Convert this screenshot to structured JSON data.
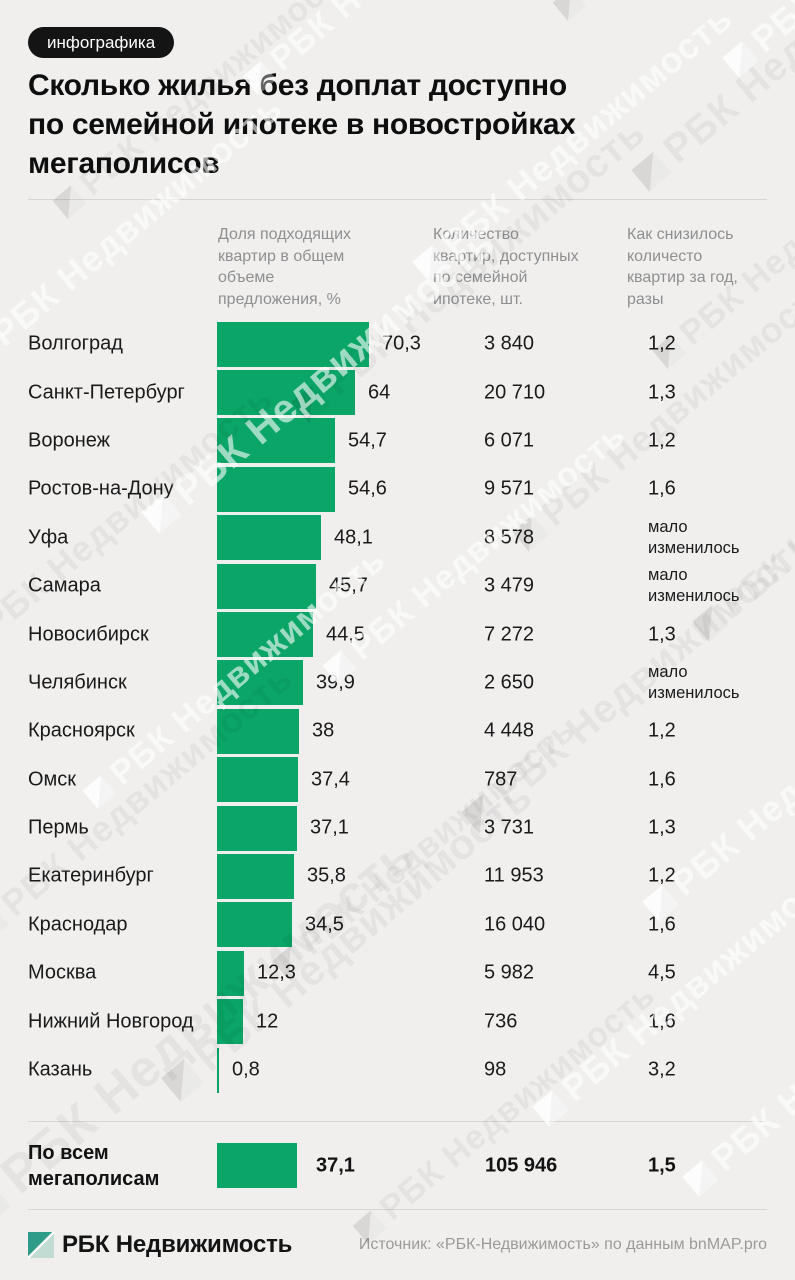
{
  "badge": "инфографика",
  "title_lines": [
    "Сколько жилья без доплат доступно",
    "по семейной ипотеке в новостройках",
    "мегаполисов"
  ],
  "columns": [
    {
      "lines": [
        "Доля подходящих",
        "квартир в общем",
        "объеме",
        "предложения, %"
      ]
    },
    {
      "lines": [
        "Количество",
        "квартир, доступных",
        "по семейной",
        "ипотеке, шт."
      ]
    },
    {
      "lines": [
        "Как снизилось",
        "количесто",
        "квартир за год,",
        "разы"
      ]
    }
  ],
  "chart_data": {
    "type": "bar",
    "orientation": "horizontal",
    "bar_color": "#0aa567",
    "value_unit": "%",
    "x_range": [
      0,
      70.3
    ],
    "rows": [
      {
        "city": "Волгоград",
        "share_pct": 70.3,
        "share_label": "70,3",
        "count": 3840,
        "count_label": "3 840",
        "drop": 1.2,
        "drop_label": "1,2"
      },
      {
        "city": "Санкт-Петербург",
        "share_pct": 64,
        "share_label": "64",
        "count": 20710,
        "count_label": "20 710",
        "drop": 1.3,
        "drop_label": "1,3"
      },
      {
        "city": "Воронеж",
        "share_pct": 54.7,
        "share_label": "54,7",
        "count": 6071,
        "count_label": "6 071",
        "drop": 1.2,
        "drop_label": "1,2"
      },
      {
        "city": "Ростов-на-Дону",
        "share_pct": 54.6,
        "share_label": "54,6",
        "count": 9571,
        "count_label": "9 571",
        "drop": 1.6,
        "drop_label": "1,6"
      },
      {
        "city": "Уфа",
        "share_pct": 48.1,
        "share_label": "48,1",
        "count": 8578,
        "count_label": "8 578",
        "drop": null,
        "drop_label": "мало изменилось"
      },
      {
        "city": "Самара",
        "share_pct": 45.7,
        "share_label": "45,7",
        "count": 3479,
        "count_label": "3 479",
        "drop": null,
        "drop_label": "мало изменилось"
      },
      {
        "city": "Новосибирск",
        "share_pct": 44.5,
        "share_label": "44,5",
        "count": 7272,
        "count_label": "7 272",
        "drop": 1.3,
        "drop_label": "1,3"
      },
      {
        "city": "Челябинск",
        "share_pct": 39.9,
        "share_label": "39,9",
        "count": 2650,
        "count_label": "2 650",
        "drop": null,
        "drop_label": "мало изменилось"
      },
      {
        "city": "Красноярск",
        "share_pct": 38,
        "share_label": "38",
        "count": 4448,
        "count_label": "4 448",
        "drop": 1.2,
        "drop_label": "1,2"
      },
      {
        "city": "Омск",
        "share_pct": 37.4,
        "share_label": "37,4",
        "count": 787,
        "count_label": "787",
        "drop": 1.6,
        "drop_label": "1,6"
      },
      {
        "city": "Пермь",
        "share_pct": 37.1,
        "share_label": "37,1",
        "count": 3731,
        "count_label": "3 731",
        "drop": 1.3,
        "drop_label": "1,3"
      },
      {
        "city": "Екатеринбург",
        "share_pct": 35.8,
        "share_label": "35,8",
        "count": 11953,
        "count_label": "11 953",
        "drop": 1.2,
        "drop_label": "1,2"
      },
      {
        "city": "Краснодар",
        "share_pct": 34.5,
        "share_label": "34,5",
        "count": 16040,
        "count_label": "16 040",
        "drop": 1.6,
        "drop_label": "1,6"
      },
      {
        "city": "Москва",
        "share_pct": 12.3,
        "share_label": "12,3",
        "count": 5982,
        "count_label": "5 982",
        "drop": 4.5,
        "drop_label": "4,5"
      },
      {
        "city": "Нижний Новгород",
        "share_pct": 12,
        "share_label": "12",
        "count": 736,
        "count_label": "736",
        "drop": 1.6,
        "drop_label": "1,6"
      },
      {
        "city": "Казань",
        "share_pct": 0.8,
        "share_label": "0,8",
        "count": 98,
        "count_label": "98",
        "drop": 3.2,
        "drop_label": "3,2"
      }
    ],
    "total": {
      "label_lines": [
        "По всем",
        "мегаполисам"
      ],
      "share_pct": 37.1,
      "share_label": "37,1",
      "count": 105946,
      "count_label": "105 946",
      "drop": 1.5,
      "drop_label": "1,5"
    }
  },
  "footer": {
    "brand": "РБК Недвижимость",
    "source": "Источник: «РБК-Недвижимость» по данным bnMAP.pro"
  },
  "watermark": {
    "text": "РБК Недвижимость"
  }
}
